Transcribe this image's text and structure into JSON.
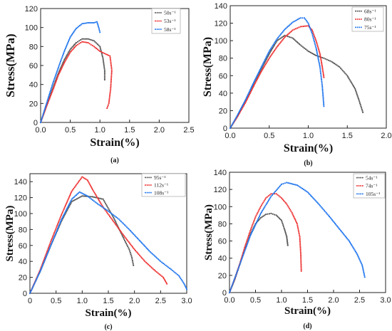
{
  "chart_data": [
    {
      "type": "line",
      "caption": "(a)",
      "xlabel": "Strain(%)",
      "ylabel": "Stress(MPa)",
      "xlim": [
        0,
        2.5
      ],
      "ylim": [
        0,
        120
      ],
      "xticks": [
        "0.0",
        "0.5",
        "1.0",
        "1.5",
        "2.0",
        "2.5"
      ],
      "yticks": [
        "0",
        "20",
        "40",
        "60",
        "80",
        "100",
        "120"
      ],
      "legend_position": "top-right",
      "series": [
        {
          "name": "50s⁻¹",
          "color": "#555555",
          "points": [
            [
              0,
              0
            ],
            [
              0.1,
              18
            ],
            [
              0.2,
              35
            ],
            [
              0.3,
              52
            ],
            [
              0.4,
              66
            ],
            [
              0.5,
              77
            ],
            [
              0.6,
              84
            ],
            [
              0.7,
              88
            ],
            [
              0.8,
              88
            ],
            [
              0.9,
              86
            ],
            [
              1.0,
              80
            ],
            [
              1.05,
              68
            ],
            [
              1.08,
              55
            ],
            [
              1.08,
              45
            ]
          ]
        },
        {
          "name": "53s⁻¹",
          "color": "#ee3333",
          "points": [
            [
              0,
              0
            ],
            [
              0.1,
              17
            ],
            [
              0.2,
              33
            ],
            [
              0.3,
              50
            ],
            [
              0.4,
              63
            ],
            [
              0.5,
              74
            ],
            [
              0.6,
              81
            ],
            [
              0.7,
              85
            ],
            [
              0.8,
              84
            ],
            [
              0.9,
              80
            ],
            [
              1.0,
              75
            ],
            [
              1.1,
              72
            ],
            [
              1.17,
              70
            ],
            [
              1.2,
              55
            ],
            [
              1.18,
              35
            ],
            [
              1.15,
              20
            ],
            [
              1.12,
              15
            ]
          ]
        },
        {
          "name": "58s⁻¹",
          "color": "#2277ee",
          "points": [
            [
              0,
              0
            ],
            [
              0.1,
              20
            ],
            [
              0.2,
              40
            ],
            [
              0.3,
              58
            ],
            [
              0.4,
              75
            ],
            [
              0.5,
              90
            ],
            [
              0.6,
              99
            ],
            [
              0.7,
              104
            ],
            [
              0.8,
              105
            ],
            [
              0.9,
              105
            ],
            [
              0.95,
              106
            ],
            [
              0.98,
              100
            ],
            [
              1.0,
              95
            ]
          ]
        }
      ]
    },
    {
      "type": "line",
      "caption": "(b)",
      "xlabel": "Strain(%)",
      "ylabel": "Stress(MPa)",
      "xlim": [
        0,
        2.0
      ],
      "ylim": [
        0,
        140
      ],
      "xticks": [
        "0.0",
        "0.5",
        "1.0",
        "1.5",
        "2.0"
      ],
      "yticks": [
        "0",
        "20",
        "40",
        "60",
        "80",
        "100",
        "120",
        "140"
      ],
      "legend_position": "top-right",
      "series": [
        {
          "name": "68s⁻¹",
          "color": "#555555",
          "points": [
            [
              0,
              0
            ],
            [
              0.1,
              15
            ],
            [
              0.2,
              32
            ],
            [
              0.3,
              50
            ],
            [
              0.4,
              68
            ],
            [
              0.5,
              85
            ],
            [
              0.6,
              100
            ],
            [
              0.7,
              106
            ],
            [
              0.8,
              103
            ],
            [
              0.9,
              95
            ],
            [
              1.0,
              88
            ],
            [
              1.1,
              83
            ],
            [
              1.2,
              80
            ],
            [
              1.3,
              76
            ],
            [
              1.4,
              70
            ],
            [
              1.5,
              60
            ],
            [
              1.6,
              45
            ],
            [
              1.65,
              32
            ],
            [
              1.7,
              18
            ]
          ]
        },
        {
          "name": "80s⁻¹",
          "color": "#ee3333",
          "points": [
            [
              0,
              0
            ],
            [
              0.1,
              14
            ],
            [
              0.2,
              30
            ],
            [
              0.3,
              48
            ],
            [
              0.4,
              65
            ],
            [
              0.5,
              80
            ],
            [
              0.6,
              93
            ],
            [
              0.7,
              104
            ],
            [
              0.8,
              112
            ],
            [
              0.9,
              116
            ],
            [
              1.0,
              117
            ],
            [
              1.05,
              112
            ],
            [
              1.1,
              100
            ],
            [
              1.15,
              85
            ],
            [
              1.18,
              70
            ],
            [
              1.2,
              58
            ]
          ]
        },
        {
          "name": "75s⁻¹",
          "color": "#2277ee",
          "points": [
            [
              0,
              0
            ],
            [
              0.1,
              16
            ],
            [
              0.2,
              33
            ],
            [
              0.3,
              52
            ],
            [
              0.4,
              70
            ],
            [
              0.5,
              88
            ],
            [
              0.6,
              102
            ],
            [
              0.7,
              113
            ],
            [
              0.8,
              121
            ],
            [
              0.9,
              126
            ],
            [
              0.95,
              126
            ],
            [
              1.0,
              120
            ],
            [
              1.05,
              108
            ],
            [
              1.1,
              92
            ],
            [
              1.15,
              70
            ],
            [
              1.18,
              48
            ],
            [
              1.2,
              25
            ]
          ]
        }
      ]
    },
    {
      "type": "line",
      "caption": "(c)",
      "xlabel": "Strain(%)",
      "ylabel": "Stress(MPa)",
      "xlim": [
        0,
        3.0
      ],
      "ylim": [
        0,
        150
      ],
      "xticks": [
        "0",
        "0.5",
        "1.0",
        "1.5",
        "2.0",
        "2.5",
        "3.0"
      ],
      "yticks": [
        "0",
        "20",
        "40",
        "60",
        "80",
        "100",
        "120",
        "140"
      ],
      "legend_position": "top-right",
      "series": [
        {
          "name": "95s⁻¹",
          "color": "#555555",
          "points": [
            [
              0,
              0
            ],
            [
              0.2,
              28
            ],
            [
              0.4,
              60
            ],
            [
              0.6,
              90
            ],
            [
              0.8,
              115
            ],
            [
              1.0,
              122
            ],
            [
              1.2,
              121
            ],
            [
              1.4,
              118
            ],
            [
              1.6,
              95
            ],
            [
              1.8,
              68
            ],
            [
              1.9,
              55
            ],
            [
              1.95,
              45
            ],
            [
              1.98,
              35
            ]
          ]
        },
        {
          "name": "112s⁻¹",
          "color": "#ee3333",
          "points": [
            [
              0,
              0
            ],
            [
              0.2,
              30
            ],
            [
              0.4,
              65
            ],
            [
              0.6,
              98
            ],
            [
              0.8,
              128
            ],
            [
              1.0,
              146
            ],
            [
              1.1,
              142
            ],
            [
              1.2,
              130
            ],
            [
              1.4,
              108
            ],
            [
              1.6,
              90
            ],
            [
              1.8,
              72
            ],
            [
              2.0,
              55
            ],
            [
              2.2,
              40
            ],
            [
              2.4,
              28
            ],
            [
              2.55,
              20
            ],
            [
              2.62,
              12
            ]
          ]
        },
        {
          "name": "108s⁻¹",
          "color": "#2277ee",
          "points": [
            [
              0,
              0
            ],
            [
              0.2,
              28
            ],
            [
              0.4,
              60
            ],
            [
              0.6,
              92
            ],
            [
              0.8,
              118
            ],
            [
              0.95,
              127
            ],
            [
              1.1,
              122
            ],
            [
              1.3,
              112
            ],
            [
              1.5,
              103
            ],
            [
              1.7,
              93
            ],
            [
              1.9,
              80
            ],
            [
              2.1,
              66
            ],
            [
              2.3,
              52
            ],
            [
              2.5,
              40
            ],
            [
              2.7,
              30
            ],
            [
              2.85,
              22
            ],
            [
              2.95,
              12
            ],
            [
              3.0,
              5
            ]
          ]
        }
      ]
    },
    {
      "type": "line",
      "caption": "(d)",
      "xlabel": "Strain(%)",
      "ylabel": "Stress(MPa)",
      "xlim": [
        0,
        3.0
      ],
      "ylim": [
        0,
        140
      ],
      "xticks": [
        "0.0",
        "0.5",
        "1.0",
        "1.5",
        "2.0",
        "2.5",
        "3.0"
      ],
      "yticks": [
        "0",
        "20",
        "40",
        "60",
        "80",
        "100",
        "120",
        "140"
      ],
      "legend_position": "top-right",
      "series": [
        {
          "name": "54s⁻¹",
          "color": "#555555",
          "points": [
            [
              0,
              0
            ],
            [
              0.1,
              15
            ],
            [
              0.2,
              33
            ],
            [
              0.3,
              52
            ],
            [
              0.4,
              68
            ],
            [
              0.5,
              80
            ],
            [
              0.6,
              87
            ],
            [
              0.7,
              91
            ],
            [
              0.8,
              92
            ],
            [
              0.9,
              90
            ],
            [
              1.0,
              84
            ],
            [
              1.05,
              75
            ],
            [
              1.1,
              65
            ],
            [
              1.12,
              55
            ]
          ]
        },
        {
          "name": "74s⁻¹",
          "color": "#ee3333",
          "points": [
            [
              0,
              0
            ],
            [
              0.1,
              16
            ],
            [
              0.2,
              34
            ],
            [
              0.3,
              54
            ],
            [
              0.4,
              72
            ],
            [
              0.5,
              88
            ],
            [
              0.6,
              100
            ],
            [
              0.7,
              110
            ],
            [
              0.8,
              115
            ],
            [
              0.9,
              115
            ],
            [
              1.0,
              110
            ],
            [
              1.1,
              103
            ],
            [
              1.2,
              93
            ],
            [
              1.3,
              80
            ],
            [
              1.35,
              65
            ],
            [
              1.37,
              45
            ],
            [
              1.38,
              25
            ]
          ]
        },
        {
          "name": "105s⁻¹",
          "color": "#2277ee",
          "points": [
            [
              0,
              0
            ],
            [
              0.2,
              33
            ],
            [
              0.4,
              66
            ],
            [
              0.6,
              92
            ],
            [
              0.8,
              112
            ],
            [
              1.0,
              126
            ],
            [
              1.1,
              128
            ],
            [
              1.3,
              125
            ],
            [
              1.5,
              117
            ],
            [
              1.7,
              104
            ],
            [
              1.9,
              90
            ],
            [
              2.1,
              75
            ],
            [
              2.3,
              60
            ],
            [
              2.45,
              45
            ],
            [
              2.55,
              32
            ],
            [
              2.6,
              18
            ]
          ]
        }
      ]
    }
  ]
}
